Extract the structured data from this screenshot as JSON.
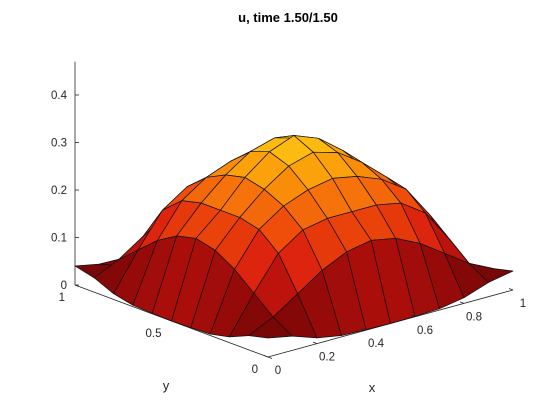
{
  "chart_data": {
    "type": "surface",
    "title": "u, time 1.50/1.50",
    "xlabel": "x",
    "ylabel": "y",
    "zlabel": "",
    "xlim": [
      0,
      1
    ],
    "ylim": [
      0,
      1
    ],
    "zlim": [
      0,
      0.47
    ],
    "x_ticks": [
      "0",
      "0.2",
      "0.4",
      "0.6",
      "0.8",
      "1"
    ],
    "x_tick_values": [
      0,
      0.2,
      0.4,
      0.6,
      0.8,
      1
    ],
    "y_ticks": [
      "0",
      "0.5",
      "1"
    ],
    "y_tick_values": [
      0,
      0.5,
      1
    ],
    "z_ticks": [
      "0",
      "0.1",
      "0.2",
      "0.3",
      "0.4"
    ],
    "z_tick_values": [
      0,
      0.1,
      0.2,
      0.3,
      0.4
    ],
    "colormap": "autumn-dark",
    "grid": false,
    "x": [
      0,
      0.1,
      0.2,
      0.3,
      0.4,
      0.5,
      0.6,
      0.7,
      0.8,
      0.9,
      1
    ],
    "y": [
      0,
      0.1,
      0.2,
      0.3,
      0.4,
      0.5,
      0.6,
      0.7,
      0.8,
      0.9,
      1
    ],
    "z": [
      [
        0.04,
        0.03,
        0.012,
        0.003,
        0.001,
        0.0,
        0.001,
        0.003,
        0.012,
        0.03,
        0.04
      ],
      [
        0.03,
        0.055,
        0.09,
        0.125,
        0.15,
        0.16,
        0.15,
        0.125,
        0.09,
        0.055,
        0.03
      ],
      [
        0.012,
        0.09,
        0.16,
        0.195,
        0.205,
        0.205,
        0.205,
        0.195,
        0.16,
        0.09,
        0.012
      ],
      [
        0.003,
        0.125,
        0.195,
        0.23,
        0.25,
        0.26,
        0.25,
        0.23,
        0.195,
        0.125,
        0.003
      ],
      [
        0.001,
        0.15,
        0.205,
        0.25,
        0.285,
        0.3,
        0.285,
        0.25,
        0.205,
        0.15,
        0.001
      ],
      [
        0.0,
        0.16,
        0.205,
        0.26,
        0.3,
        0.32,
        0.3,
        0.26,
        0.205,
        0.16,
        0.0
      ],
      [
        0.001,
        0.15,
        0.205,
        0.25,
        0.285,
        0.3,
        0.285,
        0.25,
        0.205,
        0.15,
        0.001
      ],
      [
        0.003,
        0.125,
        0.195,
        0.23,
        0.25,
        0.26,
        0.25,
        0.23,
        0.195,
        0.125,
        0.003
      ],
      [
        0.012,
        0.09,
        0.16,
        0.195,
        0.205,
        0.205,
        0.205,
        0.195,
        0.16,
        0.09,
        0.012
      ],
      [
        0.03,
        0.055,
        0.09,
        0.125,
        0.15,
        0.16,
        0.15,
        0.125,
        0.09,
        0.055,
        0.03
      ],
      [
        0.04,
        0.03,
        0.012,
        0.003,
        0.001,
        0.0,
        0.001,
        0.003,
        0.012,
        0.03,
        0.04
      ]
    ]
  }
}
